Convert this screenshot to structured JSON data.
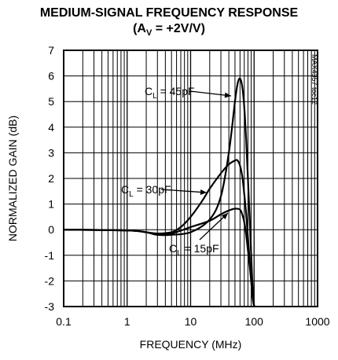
{
  "chart_data": {
    "type": "line",
    "title": "MEDIUM-SIGNAL FREQUENCY RESPONSE",
    "subtitle": "(A",
    "subtitle_sub": "V",
    "subtitle_rest": " = +2V/V)",
    "xlabel": "FREQUENCY (MHz)",
    "ylabel": "NORMALIZED GAIN (dB)",
    "xscale": "log",
    "xlim": [
      0.1,
      1000
    ],
    "ylim": [
      -3,
      7
    ],
    "x_ticks": [
      0.1,
      1,
      10,
      100,
      1000
    ],
    "x_tick_labels": [
      "0.1",
      "1",
      "10",
      "100",
      "1000"
    ],
    "y_ticks": [
      7,
      6,
      5,
      4,
      3,
      2,
      1,
      0,
      -1,
      -2,
      -3
    ],
    "y_tick_labels": [
      "7",
      "6",
      "5",
      "4",
      "3",
      "2",
      "1",
      "0",
      "-1",
      "-2",
      "-3"
    ],
    "grid": true,
    "side_text": "MAX4357 toc12",
    "series": [
      {
        "name": "CL = 45pF",
        "x": [
          0.1,
          1,
          2,
          3,
          5,
          10,
          20,
          30,
          40,
          50,
          55,
          60,
          65,
          70,
          75,
          80,
          85,
          90,
          95,
          100
        ],
        "y": [
          0,
          -0.03,
          -0.1,
          -0.2,
          -0.2,
          -0.1,
          0.4,
          1.3,
          3.0,
          5.0,
          5.7,
          5.9,
          5.6,
          4.8,
          3.5,
          2.0,
          0.5,
          -1.0,
          -2.3,
          -3.0
        ]
      },
      {
        "name": "CL = 30pF",
        "x": [
          0.1,
          1,
          2,
          3,
          5,
          7,
          10,
          15,
          20,
          30,
          40,
          50,
          55,
          60,
          65,
          70,
          75,
          80,
          85,
          90,
          95,
          100
        ],
        "y": [
          0,
          -0.03,
          -0.1,
          -0.15,
          -0.1,
          0.1,
          0.5,
          1.1,
          1.6,
          2.2,
          2.55,
          2.7,
          2.7,
          2.5,
          2.1,
          1.4,
          0.6,
          -0.3,
          -1.2,
          -2.0,
          -2.7,
          -3.0
        ]
      },
      {
        "name": "CL = 15pF",
        "x": [
          0.1,
          1,
          2,
          3,
          5,
          10,
          20,
          30,
          40,
          50,
          60,
          65,
          70,
          75,
          80,
          85,
          90,
          95,
          100
        ],
        "y": [
          0,
          -0.03,
          -0.1,
          -0.2,
          -0.15,
          0.1,
          0.35,
          0.6,
          0.75,
          0.82,
          0.78,
          0.6,
          0.3,
          -0.2,
          -0.8,
          -1.4,
          -2.0,
          -2.6,
          -3.0
        ]
      }
    ],
    "annotations": [
      {
        "text": "C",
        "sub": "L",
        "rest": " = 45pF",
        "series": 0
      },
      {
        "text": "C",
        "sub": "L",
        "rest": " = 30pF",
        "series": 1
      },
      {
        "text": "C",
        "sub": "L",
        "rest": " = 15pF",
        "series": 2
      }
    ]
  }
}
